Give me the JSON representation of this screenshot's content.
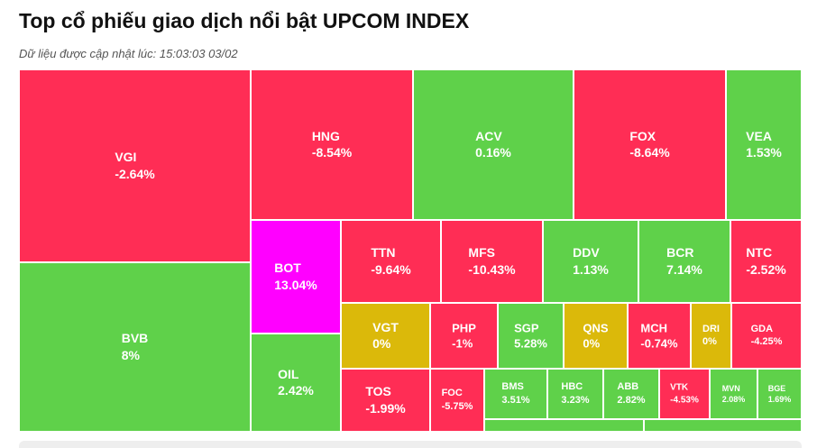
{
  "header": {
    "title": "Top cổ phiếu giao dịch nổi bật UPCOM INDEX",
    "updated": "Dữ liệu được cập nhật lúc: 15:03:03 03/02"
  },
  "colors": {
    "up": "#5fd14a",
    "down": "#ff2d55",
    "unchanged": "#dbb90a",
    "ceiling": "#ff00ff"
  },
  "chart_data": {
    "type": "treemap",
    "items": [
      {
        "ticker": "VGI",
        "change": "-2.64%",
        "status": "down"
      },
      {
        "ticker": "BVB",
        "change": "8%",
        "status": "up"
      },
      {
        "ticker": "HNG",
        "change": "-8.54%",
        "status": "down"
      },
      {
        "ticker": "ACV",
        "change": "0.16%",
        "status": "up"
      },
      {
        "ticker": "FOX",
        "change": "-8.64%",
        "status": "down"
      },
      {
        "ticker": "VEA",
        "change": "1.53%",
        "status": "up"
      },
      {
        "ticker": "BOT",
        "change": "13.04%",
        "status": "ceiling"
      },
      {
        "ticker": "OIL",
        "change": "2.42%",
        "status": "up"
      },
      {
        "ticker": "TTN",
        "change": "-9.64%",
        "status": "down"
      },
      {
        "ticker": "MFS",
        "change": "-10.43%",
        "status": "down"
      },
      {
        "ticker": "DDV",
        "change": "1.13%",
        "status": "up"
      },
      {
        "ticker": "BCR",
        "change": "7.14%",
        "status": "up"
      },
      {
        "ticker": "NTC",
        "change": "-2.52%",
        "status": "down"
      },
      {
        "ticker": "VGT",
        "change": "0%",
        "status": "unchanged"
      },
      {
        "ticker": "PHP",
        "change": "-1%",
        "status": "down"
      },
      {
        "ticker": "SGP",
        "change": "5.28%",
        "status": "up"
      },
      {
        "ticker": "QNS",
        "change": "0%",
        "status": "unchanged"
      },
      {
        "ticker": "MCH",
        "change": "-0.74%",
        "status": "down"
      },
      {
        "ticker": "DRI",
        "change": "0%",
        "status": "unchanged"
      },
      {
        "ticker": "GDA",
        "change": "-4.25%",
        "status": "down"
      },
      {
        "ticker": "TOS",
        "change": "-1.99%",
        "status": "down"
      },
      {
        "ticker": "FOC",
        "change": "-5.75%",
        "status": "down"
      },
      {
        "ticker": "BMS",
        "change": "3.51%",
        "status": "up"
      },
      {
        "ticker": "HBC",
        "change": "3.23%",
        "status": "up"
      },
      {
        "ticker": "ABB",
        "change": "2.82%",
        "status": "up"
      },
      {
        "ticker": "VTK",
        "change": "-4.53%",
        "status": "down"
      },
      {
        "ticker": "MVN",
        "change": "2.08%",
        "status": "up"
      },
      {
        "ticker": "BGE",
        "change": "1.69%",
        "status": "up"
      },
      {
        "ticker": "",
        "change": "",
        "status": "up"
      },
      {
        "ticker": "",
        "change": "",
        "status": "up"
      }
    ]
  }
}
